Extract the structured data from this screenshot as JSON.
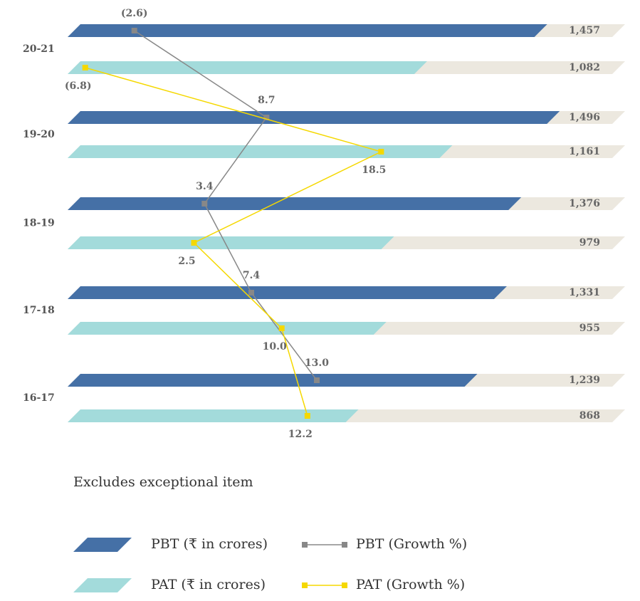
{
  "chart_data": {
    "type": "bar",
    "categories": [
      "20-21",
      "19-20",
      "18-19",
      "17-18",
      "16-17"
    ],
    "xlim": [
      0,
      1700
    ],
    "x2lim": [
      -8,
      20
    ],
    "track_color": "#ece8df",
    "series": [
      {
        "name": "PBT (₹ in crores)",
        "color": "#4570a6",
        "values": [
          1457,
          1496,
          1376,
          1331,
          1239
        ],
        "value_labels": [
          "1,457",
          "1,496",
          "1,376",
          "1,331",
          "1,239"
        ]
      },
      {
        "name": "PAT (₹ in crores)",
        "color": "#a3dbdb",
        "values": [
          1082,
          1161,
          979,
          955,
          868
        ],
        "value_labels": [
          "1,082",
          "1,161",
          "979",
          "955",
          "868"
        ]
      },
      {
        "name": "PBT (Growth %)",
        "type": "line",
        "axis": "x2",
        "color": "#888888",
        "values": [
          -2.6,
          8.7,
          3.4,
          7.4,
          13.0
        ],
        "value_labels": [
          "(2.6)",
          "8.7",
          "3.4",
          "7.4",
          "13.0"
        ]
      },
      {
        "name": "PAT (Growth %)",
        "type": "line",
        "axis": "x2",
        "color": "#f5d800",
        "values": [
          -6.8,
          18.5,
          2.5,
          10.0,
          12.2
        ],
        "value_labels": [
          "(6.8)",
          "18.5",
          "2.5",
          "10.0",
          "12.2"
        ]
      }
    ],
    "note": "Excludes exceptional item"
  }
}
